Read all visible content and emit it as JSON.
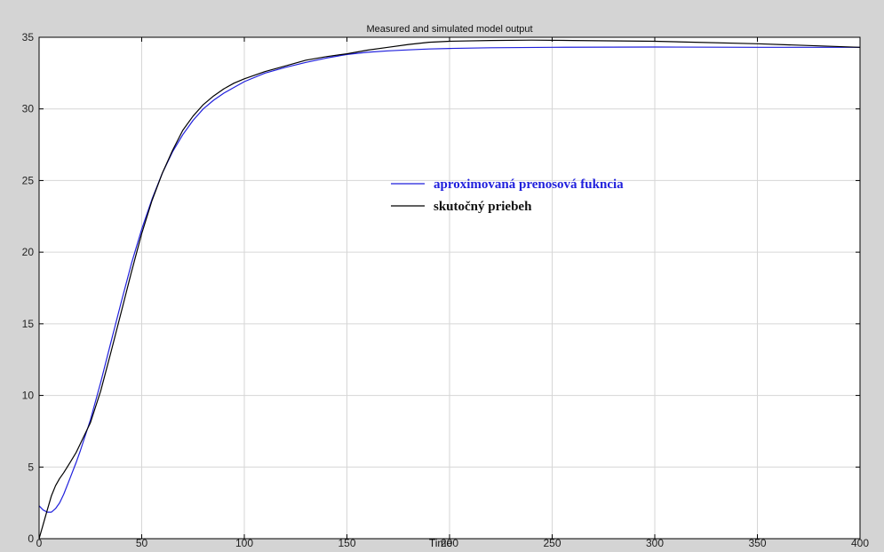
{
  "chart_data": {
    "type": "line",
    "title": "Measured and simulated model output",
    "xlabel": "Time",
    "ylabel": "",
    "xlim": [
      0,
      400
    ],
    "ylim": [
      0,
      35
    ],
    "xticks": [
      0,
      50,
      100,
      150,
      200,
      250,
      300,
      350,
      400
    ],
    "yticks": [
      0,
      5,
      10,
      15,
      20,
      25,
      30,
      35
    ],
    "grid": true,
    "legend_position": "center-right",
    "series": [
      {
        "name": "aproximovaná prenosová fukncia",
        "color": "#1f1fdc",
        "x": [
          0,
          2,
          4,
          6,
          8,
          10,
          12,
          15,
          18,
          20,
          25,
          30,
          35,
          40,
          45,
          50,
          55,
          60,
          65,
          70,
          75,
          80,
          85,
          90,
          95,
          100,
          110,
          120,
          130,
          140,
          150,
          160,
          170,
          180,
          190,
          200,
          220,
          250,
          300,
          350,
          400
        ],
        "y": [
          2.3,
          2.0,
          1.85,
          1.85,
          2.1,
          2.5,
          3.1,
          4.2,
          5.3,
          6.1,
          8.3,
          10.9,
          13.7,
          16.5,
          19.2,
          21.6,
          23.7,
          25.5,
          27.0,
          28.2,
          29.2,
          30.0,
          30.6,
          31.1,
          31.5,
          31.9,
          32.5,
          32.9,
          33.25,
          33.55,
          33.8,
          33.95,
          34.05,
          34.12,
          34.18,
          34.22,
          34.27,
          34.3,
          34.32,
          34.3,
          34.3
        ]
      },
      {
        "name": "skutočný priebeh",
        "color": "#000000",
        "x": [
          0,
          2,
          4,
          6,
          8,
          10,
          12,
          15,
          18,
          20,
          25,
          30,
          35,
          40,
          45,
          50,
          55,
          60,
          65,
          70,
          75,
          80,
          85,
          90,
          95,
          100,
          110,
          120,
          130,
          140,
          150,
          160,
          170,
          180,
          190,
          200,
          220,
          240,
          260,
          300,
          350,
          400
        ],
        "y": [
          0.0,
          1.0,
          2.0,
          3.0,
          3.7,
          4.2,
          4.6,
          5.3,
          6.0,
          6.6,
          8.1,
          10.3,
          13.0,
          15.8,
          18.6,
          21.3,
          23.6,
          25.5,
          27.1,
          28.5,
          29.5,
          30.3,
          30.9,
          31.4,
          31.8,
          32.1,
          32.6,
          33.0,
          33.4,
          33.65,
          33.85,
          34.1,
          34.3,
          34.5,
          34.65,
          34.72,
          34.78,
          34.8,
          34.78,
          34.72,
          34.55,
          34.3
        ]
      }
    ]
  }
}
